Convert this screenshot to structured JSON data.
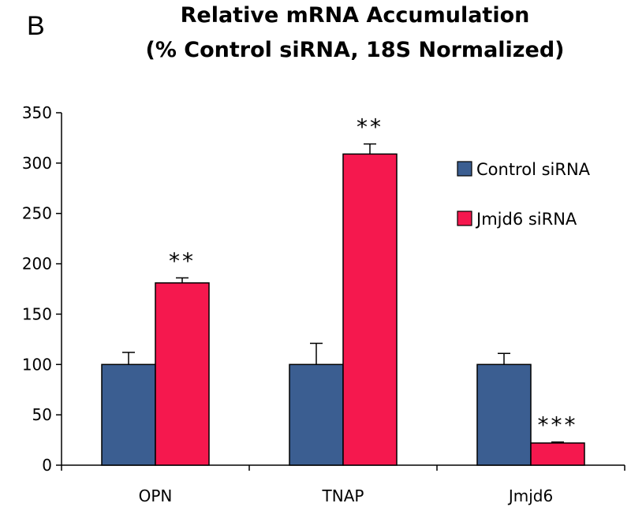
{
  "panel_label": "B",
  "chart_data": {
    "type": "bar",
    "title": [
      "Relative mRNA Accumulation",
      "(% Control siRNA, 18S Normalized)"
    ],
    "xlabel": "",
    "ylabel": "",
    "ylim": [
      0,
      350
    ],
    "yticks": [
      0,
      50,
      100,
      150,
      200,
      250,
      300,
      350
    ],
    "grid": false,
    "legend_position": "top-right",
    "categories": [
      "OPN",
      "TNAP",
      "Jmjd6"
    ],
    "series": [
      {
        "name": "Control siRNA",
        "color": "#3b5e91",
        "values": [
          100,
          100,
          100
        ],
        "errors": [
          12,
          21,
          11
        ]
      },
      {
        "name": "Jmjd6 siRNA",
        "color": "#f5184e",
        "values": [
          181,
          309,
          22
        ],
        "errors": [
          5,
          10,
          1
        ]
      }
    ],
    "annotations": [
      {
        "category": "OPN",
        "series": "Jmjd6 siRNA",
        "text": "**"
      },
      {
        "category": "TNAP",
        "series": "Jmjd6 siRNA",
        "text": "**"
      },
      {
        "category": "Jmjd6",
        "series": "Jmjd6 siRNA",
        "text": "***"
      }
    ]
  }
}
